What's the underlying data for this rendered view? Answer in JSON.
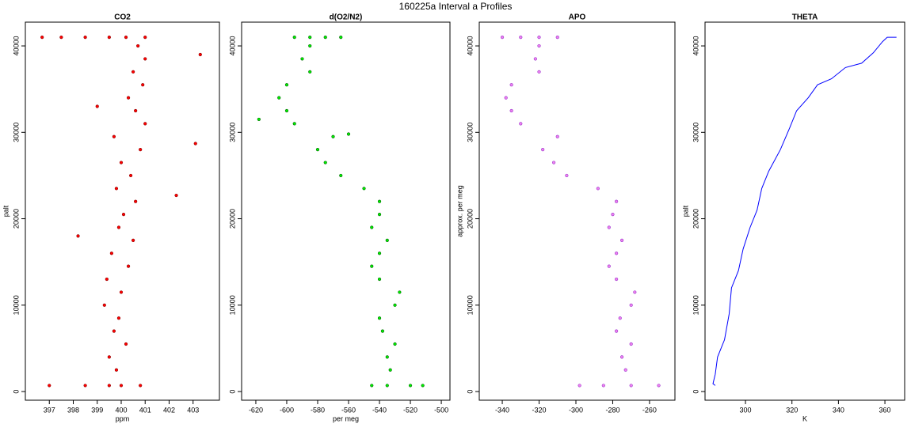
{
  "title": "160225a   Interval a Profiles",
  "chart_data": [
    {
      "type": "scatter",
      "title": "CO2",
      "x_label": "ppm",
      "y_label": "palt",
      "color": "#ff0000",
      "edge_color": "#8b0000",
      "x": [
        397.0,
        398.5,
        399.5,
        400.0,
        400.8,
        399.8,
        399.5,
        400.2,
        399.7,
        399.9,
        399.3,
        400.0,
        399.4,
        400.3,
        399.6,
        400.5,
        399.9,
        400.1,
        400.6,
        399.8,
        400.4,
        400.0,
        400.8,
        399.7,
        401.0,
        400.6,
        400.3,
        400.9,
        400.5,
        401.0,
        400.7,
        396.7,
        397.5,
        398.5,
        399.5,
        400.2,
        401.0,
        403.1,
        403.3,
        402.3,
        398.2,
        399.0
      ],
      "y": [
        700,
        700,
        700,
        700,
        700,
        2500,
        4000,
        5500,
        7000,
        8500,
        10000,
        11500,
        13000,
        14500,
        16000,
        17500,
        19000,
        20500,
        22000,
        23500,
        25000,
        26500,
        28000,
        29500,
        31000,
        32500,
        34000,
        35500,
        37000,
        38500,
        40000,
        41000,
        41000,
        41000,
        41000,
        41000,
        41000,
        28700,
        39000,
        22700,
        18000,
        33000
      ],
      "xlim": [
        396.0,
        404.1
      ],
      "ylim": [
        -1000,
        42750
      ],
      "xticks": [
        397,
        398,
        399,
        400,
        401,
        402,
        403
      ],
      "yticks": [
        0,
        10000,
        20000,
        30000,
        40000
      ]
    },
    {
      "type": "scatter",
      "title": "d(O2/N2)",
      "x_label": "per meg",
      "color": "#00ee00",
      "edge_color": "#006400",
      "x": [
        -545,
        -535,
        -520,
        -512,
        -533,
        -535,
        -530,
        -538,
        -540,
        -530,
        -527,
        -540,
        -545,
        -540,
        -535,
        -545,
        -540,
        -540,
        -550,
        -565,
        -575,
        -580,
        -570,
        -595,
        -600,
        -605,
        -600,
        -585,
        -590,
        -585,
        -595,
        -585,
        -575,
        -565,
        -618,
        -560
      ],
      "y": [
        700,
        700,
        700,
        700,
        2500,
        4000,
        5500,
        7000,
        8500,
        10000,
        11500,
        13000,
        14500,
        16000,
        17500,
        19000,
        20500,
        22000,
        23500,
        25000,
        26500,
        28000,
        29500,
        31000,
        32500,
        34000,
        35500,
        37000,
        38500,
        40000,
        41000,
        41000,
        41000,
        41000,
        31500,
        29800
      ],
      "xlim": [
        -629.2,
        -494.4
      ],
      "ylim": [
        -1000,
        42750
      ],
      "xticks": [
        -620,
        -600,
        -580,
        -560,
        -540,
        -520,
        -500
      ],
      "yticks": [
        0,
        10000,
        20000,
        30000,
        40000
      ]
    },
    {
      "type": "scatter",
      "title": "APO",
      "y_label": "approx. per meg",
      "color": "#ee82ee",
      "edge_color": "#9932cc",
      "x": [
        -298,
        -285,
        -270,
        -255,
        -273,
        -275,
        -270,
        -278,
        -276,
        -270,
        -268,
        -278,
        -282,
        -278,
        -275,
        -282,
        -280,
        -278,
        -288,
        -305,
        -312,
        -318,
        -310,
        -330,
        -335,
        -338,
        -335,
        -320,
        -322,
        -320,
        -340,
        -330,
        -320,
        -310
      ],
      "y": [
        700,
        700,
        700,
        700,
        2500,
        4000,
        5500,
        7000,
        8500,
        10000,
        11500,
        13000,
        14500,
        16000,
        17500,
        19000,
        20500,
        22000,
        23500,
        25000,
        26500,
        28000,
        29500,
        31000,
        32500,
        34000,
        35500,
        37000,
        38500,
        40000,
        41000,
        41000,
        41000,
        41000
      ],
      "xlim": [
        -352.5,
        -246.2
      ],
      "ylim": [
        -1000,
        42750
      ],
      "xticks": [
        -340,
        -320,
        -300,
        -280,
        -260
      ],
      "yticks": [
        0,
        10000,
        20000,
        30000,
        40000
      ]
    },
    {
      "type": "line",
      "title": "THETA",
      "x_label": "K",
      "y_label": "palt",
      "color": "#0000ff",
      "x": [
        287,
        286,
        287,
        288,
        291,
        293,
        294,
        297,
        299,
        302,
        305,
        307,
        310,
        315,
        319,
        322,
        327,
        331,
        337,
        343,
        350,
        355,
        359,
        361,
        365
      ],
      "y": [
        700,
        900,
        2000,
        4000,
        6000,
        9000,
        12000,
        14000,
        16500,
        19000,
        21000,
        23500,
        25500,
        28000,
        30500,
        32500,
        34000,
        35500,
        36200,
        37500,
        38000,
        39200,
        40500,
        41000,
        41000
      ],
      "xlim": [
        282.6,
        368.5
      ],
      "ylim": [
        -1000,
        42750
      ],
      "xticks": [
        300,
        320,
        340,
        360
      ],
      "yticks": [
        0,
        10000,
        20000,
        30000,
        40000
      ]
    }
  ]
}
